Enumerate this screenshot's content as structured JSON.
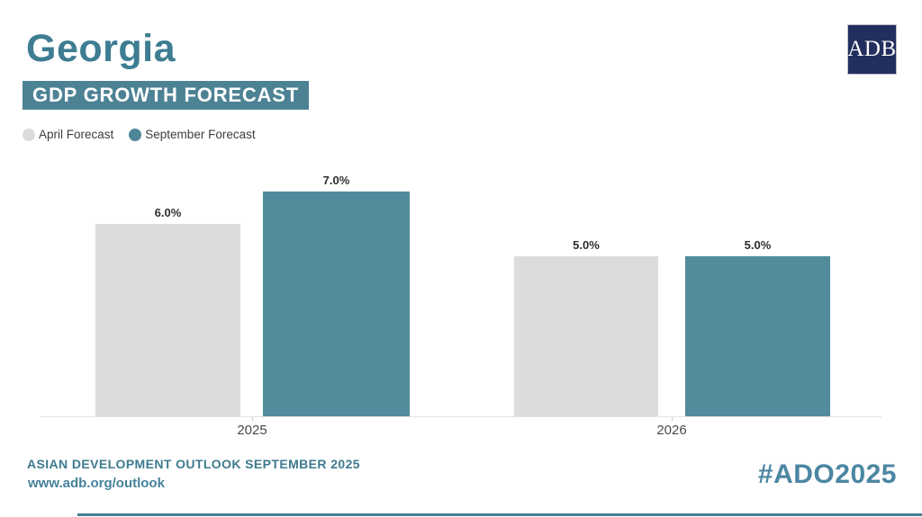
{
  "header": {
    "title": "Georgia",
    "subtitle": "GDP GROWTH FORECAST",
    "logo_text": "ADB"
  },
  "legend": {
    "items": [
      {
        "label": "April Forecast",
        "color": "#dcdcdc"
      },
      {
        "label": "September Forecast",
        "color": "#4e8698"
      }
    ]
  },
  "chart_data": {
    "type": "bar",
    "title": "Georgia GDP Growth Forecast",
    "categories": [
      "2025",
      "2026"
    ],
    "series": [
      {
        "name": "April Forecast",
        "color": "#dcdcdc",
        "values": [
          6.0,
          5.0
        ],
        "labels": [
          "6.0%",
          "5.0%"
        ]
      },
      {
        "name": "September Forecast",
        "color": "#528c9c",
        "values": [
          7.0,
          5.0
        ],
        "labels": [
          "7.0%",
          "5.0%"
        ]
      }
    ],
    "xlabel": "",
    "ylabel": "",
    "unit": "percent",
    "ylim": [
      0,
      7.8
    ],
    "grid": false,
    "legend_position": "top-left",
    "value_labels_shown": true
  },
  "footer": {
    "line1": "ASIAN DEVELOPMENT OUTLOOK SEPTEMBER 2025",
    "line2": "www.adb.org/outlook",
    "hashtag": "#ADO2025"
  },
  "colors": {
    "title_teal": "#3e7d92",
    "banner_teal": "#4d8295",
    "bar_gray": "#dcdcdc",
    "bar_teal": "#528c9c",
    "logo_navy": "#222e5e",
    "hashtag_blue": "#4c86a2",
    "axis_gray": "#e3e3e3",
    "bottom_rule": "#4a7e92"
  }
}
